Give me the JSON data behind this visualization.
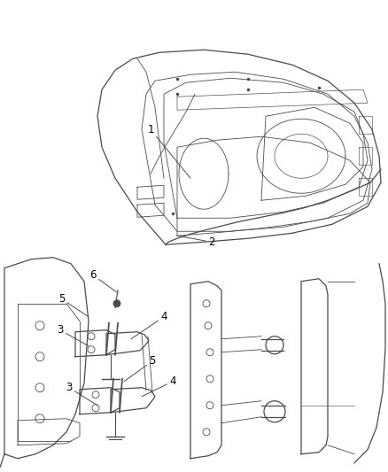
{
  "background_color": "#ffffff",
  "fig_width": 4.38,
  "fig_height": 5.33,
  "dpi": 100,
  "line_color": "#4a4a4a",
  "line_color_light": "#888888",
  "text_color": "#000000",
  "font_size": 8.5,
  "callout1_text": "1",
  "callout2_text": "2",
  "callout3_text": "3",
  "callout4_text": "4",
  "callout5_text": "5",
  "callout6_text": "6"
}
